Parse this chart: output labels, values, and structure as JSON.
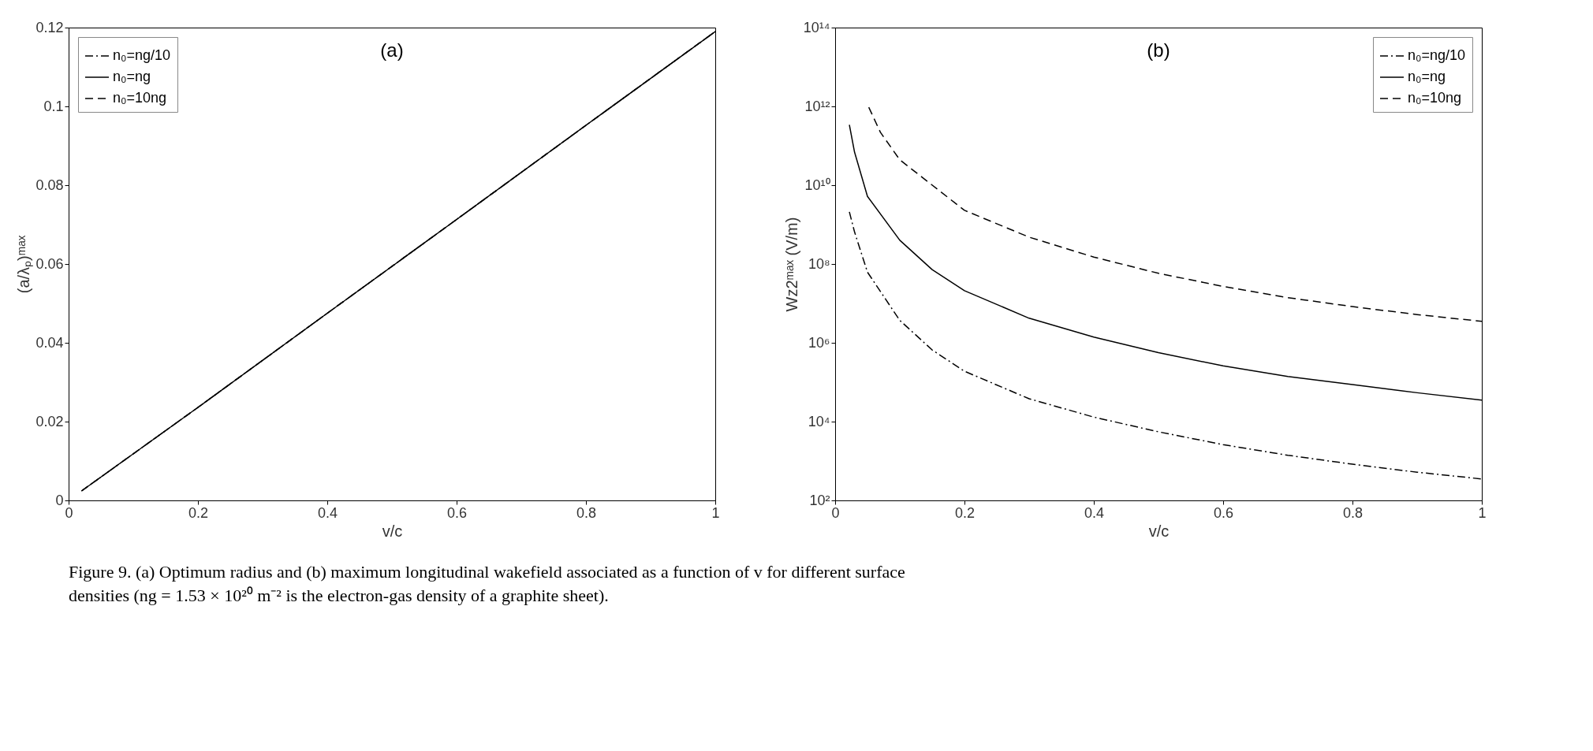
{
  "chart_data": [
    {
      "type": "line",
      "title": "(a)",
      "xlabel": "v/c",
      "ylabel": "(a/λₚ)ᵐᵃˣ",
      "xlim": [
        0,
        1
      ],
      "xticks": [
        0,
        0.2,
        0.4,
        0.6,
        0.8,
        1
      ],
      "ylim": [
        0,
        0.12
      ],
      "yticks": [
        0,
        0.02,
        0.04,
        0.06,
        0.08,
        0.1,
        0.12
      ],
      "grid": false,
      "legend": "top left",
      "series": [
        {
          "name": "n₀=ng/10",
          "color": "#000000",
          "line_style": "dashdot",
          "x": [
            0.02,
            0.2,
            0.4,
            0.6,
            0.8,
            1
          ],
          "values": [
            0.0024,
            0.0236,
            0.0475,
            0.0713,
            0.0952,
            0.119
          ]
        },
        {
          "name": "n₀=ng",
          "color": "#000000",
          "line_style": "solid",
          "x": [
            0.02,
            0.2,
            0.4,
            0.6,
            0.8,
            1
          ],
          "values": [
            0.0024,
            0.0236,
            0.0475,
            0.0713,
            0.0952,
            0.119
          ]
        },
        {
          "name": "n₀=10ng",
          "color": "#000000",
          "line_style": "dashed",
          "x": [
            0.02,
            0.2,
            0.4,
            0.6,
            0.8,
            1
          ],
          "values": [
            0.0024,
            0.0236,
            0.0475,
            0.0713,
            0.0952,
            0.119
          ]
        }
      ],
      "annotations": [
        "Figure 9. (a) Optimum radius and (b) maximum longitudinal wakefield associated as a function of v for different surface densities (ng = 1.53 × 10²⁰ m⁻² is the electron-gas density of a graphite sheet)."
      ]
    },
    {
      "type": "line",
      "title": "(b)",
      "xlabel": "v/c",
      "ylabel": "Wz2ᵐᵃˣ (V/m)",
      "log": "y",
      "xlim": [
        0,
        1
      ],
      "xticks": [
        0,
        0.2,
        0.4,
        0.6,
        0.8,
        1
      ],
      "ylim": [
        100,
        100000000000000.0
      ],
      "yticks": [
        {
          "value": 100,
          "label": "10²"
        },
        {
          "value": 10000,
          "label": "10⁴"
        },
        {
          "value": 1000000.0,
          "label": "10⁶"
        },
        {
          "value": 100000000.0,
          "label": "10⁸"
        },
        {
          "value": 10000000000.0,
          "label": "10¹⁰"
        },
        {
          "value": 1000000000000.0,
          "label": "10¹²"
        },
        {
          "value": 100000000000000.0,
          "label": "10¹⁴"
        }
      ],
      "grid": false,
      "legend": "top right",
      "series": [
        {
          "name": "n₀=ng/10",
          "color": "#000000",
          "line_style": "dashdot",
          "x": [
            0.022,
            0.03,
            0.05,
            0.1,
            0.15,
            0.2,
            0.3,
            0.4,
            0.5,
            0.6,
            0.7,
            0.8,
            0.9,
            1
          ],
          "values": [
            2100000000.0,
            650000000.0,
            62000000.0,
            3700000.0,
            660000.0,
            190000.0,
            38000.0,
            13000.0,
            5500,
            2600,
            1400,
            830,
            520,
            350
          ]
        },
        {
          "name": "n₀=ng",
          "color": "#000000",
          "line_style": "solid",
          "x": [
            0.022,
            0.03,
            0.05,
            0.1,
            0.15,
            0.2,
            0.3,
            0.4,
            0.5,
            0.6,
            0.7,
            0.8,
            0.9,
            1
          ],
          "values": [
            340000000000.0,
            69000000000.0,
            5200000000.0,
            400000000.0,
            72000000.0,
            21000000.0,
            4200000.0,
            1400000.0,
            560000.0,
            260000.0,
            140000.0,
            87000.0,
            54000.0,
            35000.0
          ]
        },
        {
          "name": "n₀=10ng",
          "color": "#000000",
          "line_style": "dashed",
          "x": [
            0.052,
            0.07,
            0.1,
            0.2,
            0.3,
            0.4,
            0.5,
            0.6,
            0.7,
            0.8,
            0.9,
            1
          ],
          "values": [
            950000000000.0,
            220000000000.0,
            44000000000.0,
            2300000000.0,
            480000000.0,
            150000000.0,
            58000000.0,
            27000000.0,
            14000000.0,
            8300000.0,
            5200000.0,
            3500000.0
          ]
        }
      ]
    }
  ]
}
